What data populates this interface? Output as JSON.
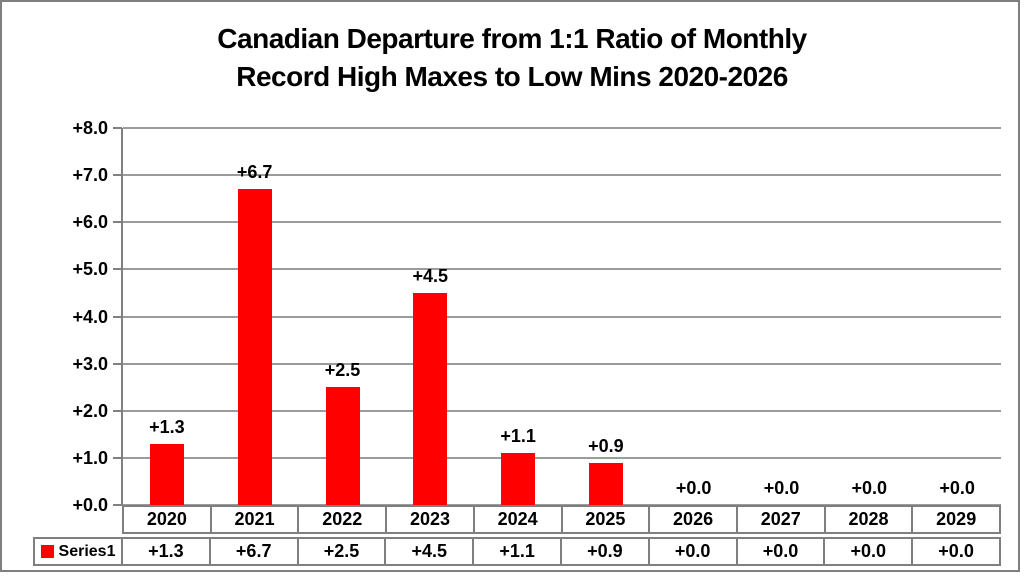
{
  "chart_data": {
    "type": "bar",
    "title": "Canadian Departure from 1:1 Ratio of Monthly Record High Maxes to Low Mins 2020-2026",
    "title_lines": [
      "Canadian Departure from 1:1 Ratio of Monthly",
      "Record High Maxes to Low Mins 2020-2026"
    ],
    "categories": [
      "2020",
      "2021",
      "2022",
      "2023",
      "2024",
      "2025",
      "2026",
      "2027",
      "2028",
      "2029"
    ],
    "series": [
      {
        "name": "Series1",
        "values": [
          1.3,
          6.7,
          2.5,
          4.5,
          1.1,
          0.9,
          0.0,
          0.0,
          0.0,
          0.0
        ]
      }
    ],
    "data_labels": [
      "+1.3",
      "+6.7",
      "+2.5",
      "+4.5",
      "+1.1",
      "+0.9",
      "+0.0",
      "+0.0",
      "+0.0",
      "+0.0"
    ],
    "y_tick_labels": [
      "+0.0",
      "+1.0",
      "+2.0",
      "+3.0",
      "+4.0",
      "+5.0",
      "+6.0",
      "+7.0",
      "+8.0"
    ],
    "ylim": [
      0,
      8
    ],
    "xlabel": "",
    "ylabel": "",
    "grid": true,
    "legend_position": "table-left",
    "data_table_shown": true,
    "colors": {
      "bar": "#ff0000",
      "gridline": "#9b9b9b",
      "axis": "#808080",
      "table_border": "#7f7f7f",
      "outer_border": "#7f7f7f",
      "text": "#000000",
      "background": "#ffffff"
    }
  }
}
